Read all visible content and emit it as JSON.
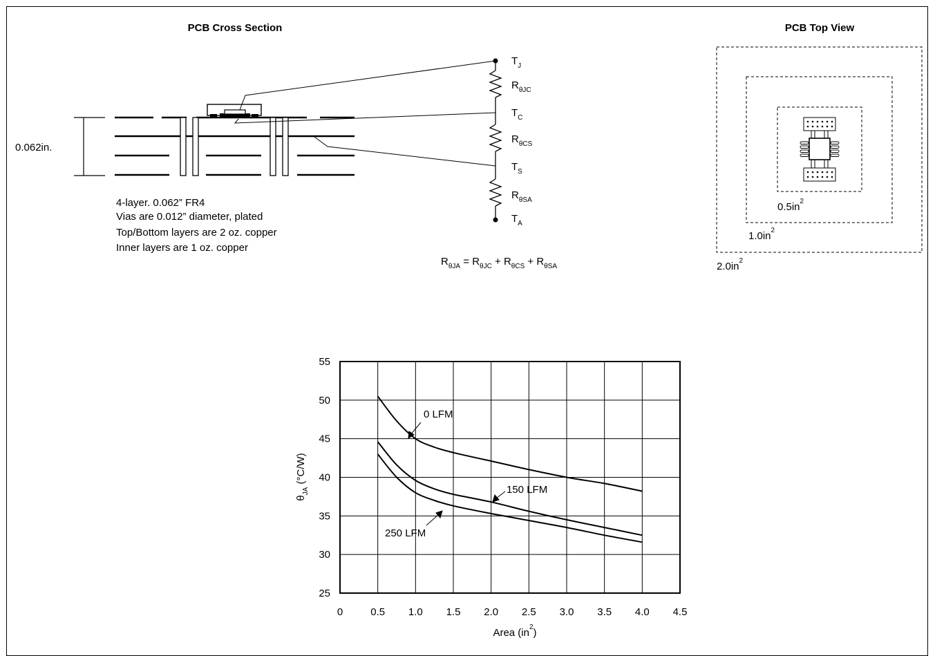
{
  "cross_section": {
    "title": "PCB Cross Section",
    "thickness_label": "0.062in.",
    "notes": [
      "4-layer. 0.062” FR4",
      "Vias are 0.012” diameter, plated",
      "Top/Bottom layers are 2 oz. copper",
      "Inner layers are 1 oz. copper"
    ]
  },
  "thermal_network": {
    "nodes": [
      {
        "base": "T",
        "sub": "J"
      },
      {
        "base": "T",
        "sub": "C"
      },
      {
        "base": "T",
        "sub": "S"
      },
      {
        "base": "T",
        "sub": "A"
      }
    ],
    "resistors": [
      {
        "base": "R",
        "sub": "θJC"
      },
      {
        "base": "R",
        "sub": "θCS"
      },
      {
        "base": "R",
        "sub": "θSA"
      }
    ],
    "equation": {
      "lhs": {
        "base": "R",
        "sub": "θJA"
      },
      "eq": " = ",
      "terms": [
        {
          "base": "R",
          "sub": "θJC"
        },
        {
          "base": "R",
          "sub": "θCS"
        },
        {
          "base": "R",
          "sub": "θSA"
        }
      ],
      "plus": " + "
    }
  },
  "top_view": {
    "title": "PCB Top View",
    "areas": [
      {
        "base": "0.5in",
        "sup": "2"
      },
      {
        "base": "1.0in",
        "sup": "2"
      },
      {
        "base": "2.0in",
        "sup": "2"
      }
    ]
  },
  "chart_data": {
    "type": "line",
    "xlabel_base": "Area (in",
    "xlabel_sup": "2",
    "xlabel_end": ")",
    "ylabel_base": "θ",
    "ylabel_sub": "JA",
    "ylabel_end": " (°C/W)",
    "xlim": [
      0,
      4.5
    ],
    "ylim": [
      25,
      55
    ],
    "xticks": [
      "0",
      "0.5",
      "1.0",
      "1.5",
      "2.0",
      "2.5",
      "3.0",
      "3.5",
      "4.0",
      "4.5"
    ],
    "yticks": [
      "25",
      "30",
      "35",
      "40",
      "45",
      "50",
      "55"
    ],
    "grid": true,
    "series": [
      {
        "name": "0 LFM",
        "x": [
          0.5,
          0.75,
          1.0,
          1.25,
          1.5,
          2.0,
          2.5,
          3.0,
          3.5,
          4.0
        ],
        "y": [
          50.5,
          47.3,
          45.0,
          43.9,
          43.2,
          42.1,
          41.0,
          40.0,
          39.2,
          38.2
        ]
      },
      {
        "name": "150 LFM",
        "x": [
          0.5,
          0.75,
          1.0,
          1.25,
          1.5,
          2.0,
          2.5,
          3.0,
          3.5,
          4.0
        ],
        "y": [
          44.6,
          41.6,
          39.6,
          38.5,
          37.8,
          36.8,
          35.6,
          34.5,
          33.5,
          32.5
        ]
      },
      {
        "name": "250 LFM",
        "x": [
          0.5,
          0.75,
          1.0,
          1.25,
          1.5,
          2.0,
          2.5,
          3.0,
          3.5,
          4.0
        ],
        "y": [
          43.0,
          40.0,
          38.0,
          37.0,
          36.3,
          35.3,
          34.4,
          33.5,
          32.5,
          31.6
        ]
      }
    ]
  }
}
